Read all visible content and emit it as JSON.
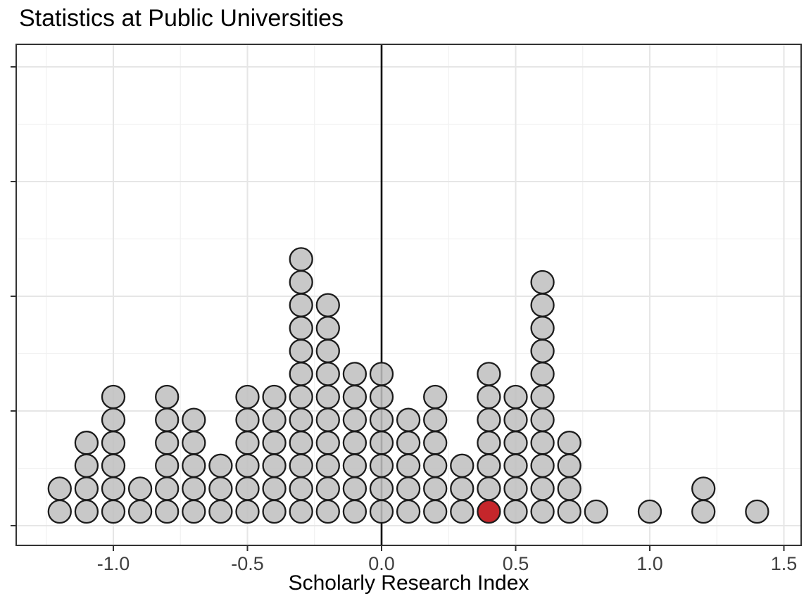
{
  "chart_data": {
    "type": "dotplot",
    "title": "Statistics at Public Universities",
    "xlabel": "Scholarly Research Index",
    "ylabel": "",
    "xlim": [
      -1.36,
      1.57
    ],
    "ylim": [
      0,
      21
    ],
    "bin_width": 0.1,
    "grid": "on",
    "x_ticks": [
      -1.0,
      -0.5,
      0.0,
      0.5,
      1.0,
      1.5
    ],
    "x_tick_labels": [
      "-1.0",
      "-0.5",
      "0.0",
      "0.5",
      "1.0",
      "1.5"
    ],
    "x_minor_ticks": [
      -1.25,
      -0.75,
      -0.25,
      0.25,
      0.75,
      1.25
    ],
    "y_ticks": [
      0,
      5,
      10,
      15,
      20
    ],
    "y_tick_labels": [
      "",
      "",
      "",
      "",
      ""
    ],
    "y_minor_ticks": [
      2.5,
      7.5,
      12.5,
      17.5
    ],
    "reference_line_x": 0.0,
    "columns": [
      {
        "x": -1.2,
        "count": 2
      },
      {
        "x": -1.1,
        "count": 4
      },
      {
        "x": -1.0,
        "count": 6
      },
      {
        "x": -0.9,
        "count": 2
      },
      {
        "x": -0.8,
        "count": 6
      },
      {
        "x": -0.7,
        "count": 5
      },
      {
        "x": -0.6,
        "count": 3
      },
      {
        "x": -0.5,
        "count": 6
      },
      {
        "x": -0.4,
        "count": 6
      },
      {
        "x": -0.3,
        "count": 12
      },
      {
        "x": -0.2,
        "count": 10
      },
      {
        "x": -0.1,
        "count": 7
      },
      {
        "x": 0.0,
        "count": 7
      },
      {
        "x": 0.1,
        "count": 5
      },
      {
        "x": 0.2,
        "count": 6
      },
      {
        "x": 0.3,
        "count": 3
      },
      {
        "x": 0.4,
        "count": 7
      },
      {
        "x": 0.5,
        "count": 6
      },
      {
        "x": 0.6,
        "count": 11
      },
      {
        "x": 0.7,
        "count": 4
      },
      {
        "x": 0.8,
        "count": 1
      },
      {
        "x": 1.0,
        "count": 1
      },
      {
        "x": 1.2,
        "count": 2
      },
      {
        "x": 1.4,
        "count": 1
      }
    ],
    "highlight": {
      "x": 0.4,
      "stack_index": 0
    },
    "colors": {
      "dot_fill": "#C0C0C0",
      "dot_stroke": "#1C1C1C",
      "highlight_fill": "#C5262B",
      "grid_major": "#E6E6E6",
      "grid_minor": "#F1F1F1",
      "panel_border": "#333333",
      "tick_mark": "#333333",
      "axis_text": "#404040",
      "reference_line": "#000000",
      "title_text": "#000000"
    }
  }
}
